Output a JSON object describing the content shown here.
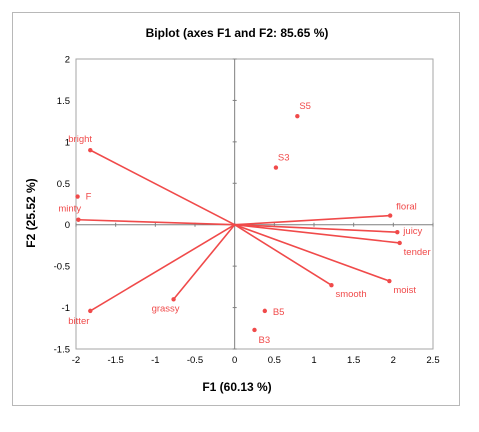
{
  "chart_data": {
    "type": "scatter",
    "title": "Biplot (axes F1 and F2: 85.65 %)",
    "xlabel": "F1 (60.13 %)",
    "ylabel": "F2 (25.52 %)",
    "xlim": [
      -2,
      2.5
    ],
    "ylim": [
      -1.5,
      2
    ],
    "xticks": [
      "-2",
      "-1.5",
      "-1",
      "-0.5",
      "0",
      "0.5",
      "1",
      "1.5",
      "2",
      "2.5"
    ],
    "yticks": [
      "-1.5",
      "-1",
      "-0.5",
      "0",
      "0.5",
      "1",
      "1.5",
      "2"
    ],
    "grid": false,
    "color": "#f04a4a",
    "vectors": [
      {
        "label": "bright",
        "x": -1.82,
        "y": 0.9
      },
      {
        "label": "minty",
        "x": -1.97,
        "y": 0.06
      },
      {
        "label": "floral",
        "x": 1.96,
        "y": 0.11
      },
      {
        "label": "juicy",
        "x": 2.05,
        "y": -0.09
      },
      {
        "label": "tender",
        "x": 2.08,
        "y": -0.22
      },
      {
        "label": "moist",
        "x": 1.95,
        "y": -0.68
      },
      {
        "label": "smooth",
        "x": 1.22,
        "y": -0.73
      },
      {
        "label": "grassy",
        "x": -0.77,
        "y": -0.9
      },
      {
        "label": "bitter",
        "x": -1.82,
        "y": -1.04
      }
    ],
    "points": [
      {
        "label": "S5",
        "x": 0.79,
        "y": 1.31
      },
      {
        "label": "S3",
        "x": 0.52,
        "y": 0.69
      },
      {
        "label": "F",
        "x": -1.98,
        "y": 0.34
      },
      {
        "label": "B5",
        "x": 0.38,
        "y": -1.04
      },
      {
        "label": "B3",
        "x": 0.25,
        "y": -1.27
      }
    ]
  }
}
